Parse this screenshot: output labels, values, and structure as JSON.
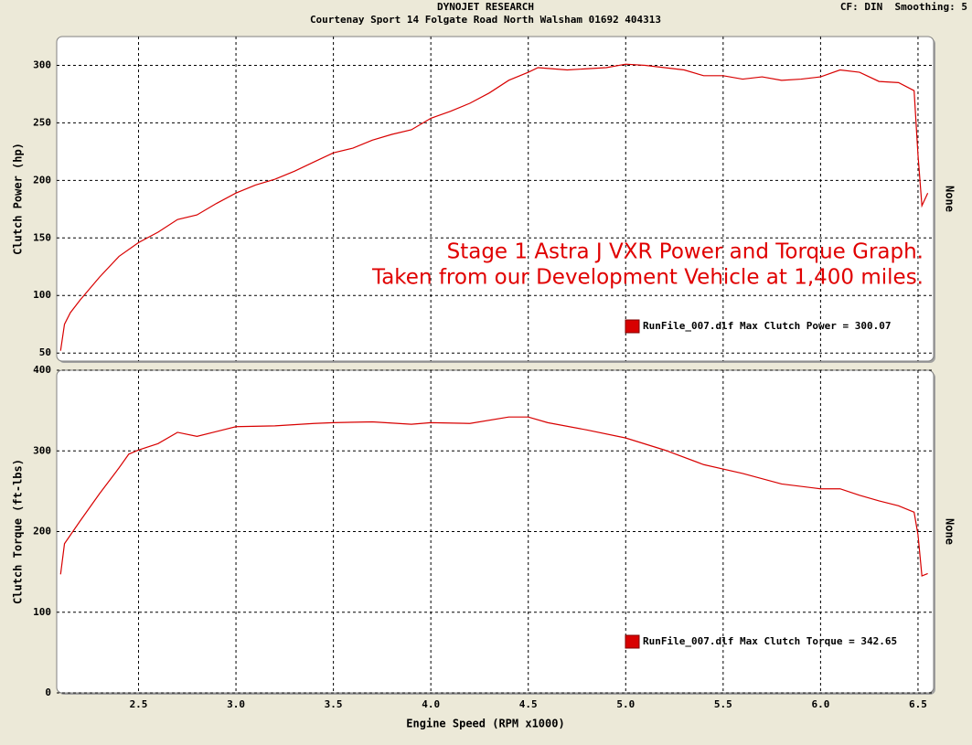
{
  "header": {
    "title": "DYNOJET RESEARCH",
    "subtitle": "Courtenay Sport 14 Folgate Road North Walsham 01692 404313",
    "settings": "CF: DIN  Smoothing: 5"
  },
  "x_label": "Engine Speed (RPM x1000)",
  "chart_data": [
    {
      "type": "line",
      "y_label": "Clutch Power (hp)",
      "y2_label": "None",
      "annotations": [
        "Stage 1 Astra J VXR Power and Torque Graph.",
        "Taken from our Development Vehicle at 1,400 miles."
      ],
      "x": [
        2.1,
        2.12,
        2.15,
        2.2,
        2.3,
        2.4,
        2.5,
        2.6,
        2.7,
        2.8,
        2.9,
        3.0,
        3.1,
        3.2,
        3.3,
        3.4,
        3.5,
        3.6,
        3.7,
        3.8,
        3.9,
        4.0,
        4.1,
        4.2,
        4.3,
        4.4,
        4.5,
        4.55,
        4.7,
        4.9,
        5.0,
        5.1,
        5.2,
        5.3,
        5.4,
        5.5,
        5.6,
        5.7,
        5.8,
        5.9,
        6.0,
        6.1,
        6.2,
        6.3,
        6.4,
        6.48,
        6.5,
        6.52,
        6.55
      ],
      "series": [
        {
          "name": "RunFile_007.dlf Max Clutch Power = 300.07",
          "color": "#d80000",
          "values": [
            52,
            75,
            85,
            96,
            116,
            134,
            146,
            155,
            166,
            170,
            180,
            189,
            196,
            201,
            208,
            216,
            224,
            228,
            235,
            240,
            244,
            254,
            260,
            267,
            276,
            287,
            294,
            298,
            296,
            298,
            301,
            300,
            298,
            296,
            291,
            291,
            288,
            290,
            287,
            288,
            290,
            296,
            294,
            286,
            285,
            278,
            222,
            178,
            189
          ]
        }
      ],
      "xlim": [
        2.08,
        6.58
      ],
      "ylim": [
        43,
        325
      ],
      "xticks": [
        2.5,
        {
          "value": 3,
          "label": "3.0"
        },
        3.5,
        {
          "value": 4,
          "label": "4.0"
        },
        4.5,
        {
          "value": 5,
          "label": "5.0"
        },
        5.5,
        {
          "value": 6,
          "label": "6.0"
        },
        6.5
      ],
      "yticks": [
        50,
        100,
        150,
        200,
        250,
        300
      ],
      "grid": true
    },
    {
      "type": "line",
      "y_label": "Clutch Torque (ft-lbs)",
      "y2_label": "None",
      "x": [
        2.1,
        2.12,
        2.2,
        2.3,
        2.4,
        2.45,
        2.5,
        2.6,
        2.7,
        2.8,
        2.9,
        3.0,
        3.2,
        3.4,
        3.5,
        3.7,
        3.9,
        4.0,
        4.2,
        4.4,
        4.5,
        4.6,
        4.8,
        5.0,
        5.2,
        5.4,
        5.6,
        5.8,
        6.0,
        6.1,
        6.2,
        6.3,
        6.4,
        6.48,
        6.5,
        6.52,
        6.55
      ],
      "series": [
        {
          "name": "RunFile_007.dlf Max Clutch Torque = 342.65",
          "color": "#d80000",
          "values": [
            147,
            185,
            213,
            247,
            279,
            296,
            301,
            309,
            323,
            318,
            324,
            330,
            331,
            334,
            335,
            336,
            333,
            335,
            334,
            342,
            342,
            335,
            326,
            316,
            301,
            283,
            272,
            259,
            253,
            253,
            245,
            238,
            232,
            224,
            196,
            145,
            148
          ]
        }
      ],
      "xlim": [
        2.08,
        6.58
      ],
      "ylim": [
        0,
        400
      ],
      "xticks": [
        2.5,
        {
          "value": 3,
          "label": "3.0"
        },
        3.5,
        {
          "value": 4,
          "label": "4.0"
        },
        4.5,
        {
          "value": 5,
          "label": "5.0"
        },
        5.5,
        {
          "value": 6,
          "label": "6.0"
        },
        6.5
      ],
      "yticks": [
        0,
        100,
        200,
        300,
        400
      ],
      "grid": true
    }
  ]
}
